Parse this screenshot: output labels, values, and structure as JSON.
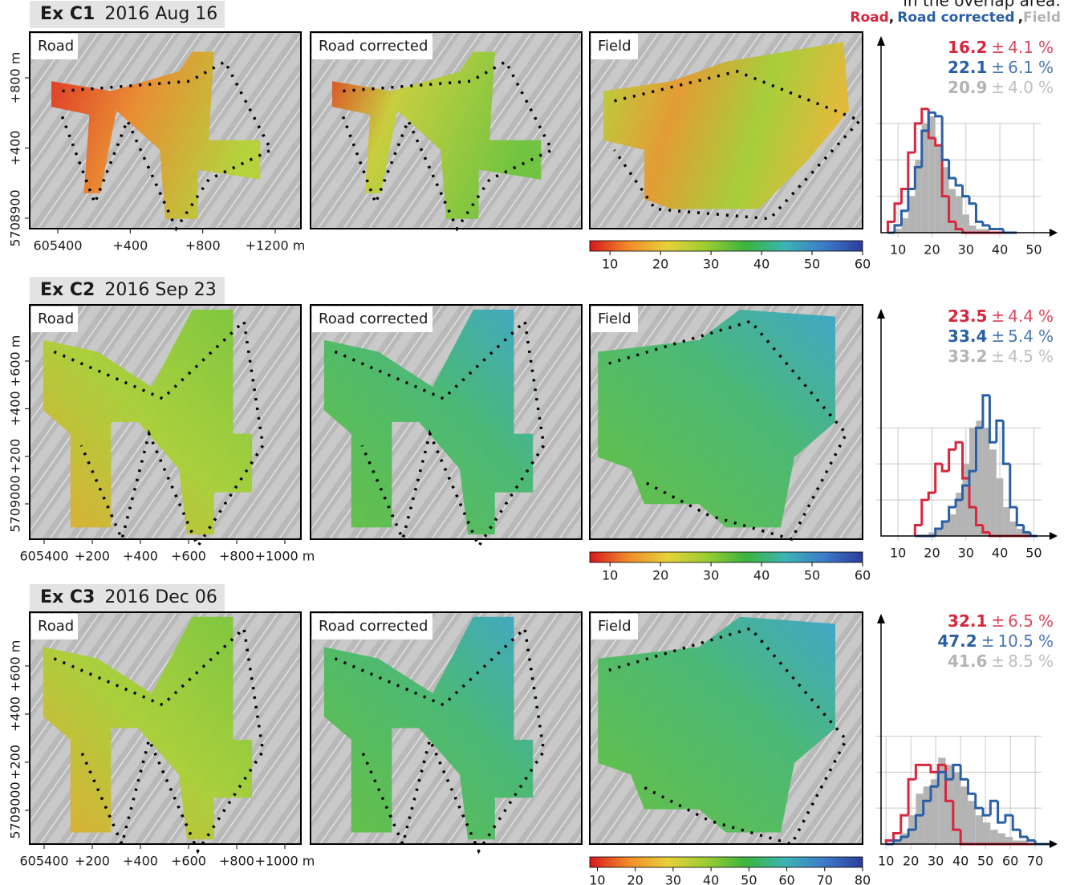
{
  "legend": {
    "caption": "in the overlap area:",
    "separator": ",",
    "entries": [
      {
        "name": "Road",
        "color": "#d7263d"
      },
      {
        "name": "Road corrected",
        "color": "#2a5fa5"
      },
      {
        "name": "Field",
        "color": "#b4b4b4"
      }
    ]
  },
  "colormap": [
    "#d7191c",
    "#f08c2a",
    "#e6d23a",
    "#9acd32",
    "#3cb43c",
    "#3cb4b4",
    "#3c7cc8",
    "#2c3c9c"
  ],
  "panels": [
    {
      "label": "Ex C1",
      "date": "2016 Aug 16",
      "maps": [
        "Road",
        "Road corrected",
        "Field"
      ],
      "x_axis_labels": [
        "605400",
        "+400",
        "+800",
        "+1200 m"
      ],
      "y_axis_labels": [
        "+800 m",
        "+400",
        "5708900"
      ],
      "colorbar": {
        "lim": [
          6,
          60
        ],
        "ticks": [
          10,
          20,
          30,
          40,
          50,
          60
        ]
      },
      "stats": [
        {
          "mean": "16.2",
          "sd": "4.1"
        },
        {
          "mean": "22.1",
          "sd": "6.1"
        },
        {
          "mean": "20.9",
          "sd": "4.0"
        }
      ],
      "pm": "±",
      "unit": "%",
      "histogram": {
        "xlim": [
          5,
          57
        ],
        "xticks": [
          10,
          20,
          30,
          40,
          50
        ],
        "ylim": [
          0,
          54
        ],
        "yticks": [
          10,
          20,
          30
        ],
        "bins": [
          7,
          9,
          11,
          13,
          15,
          17,
          19,
          21,
          23,
          25,
          27,
          29,
          31,
          33,
          35,
          37,
          39,
          41,
          43,
          45
        ],
        "counts": [
          [
            3,
            8,
            12,
            22,
            30,
            34,
            26,
            24,
            10,
            3,
            1,
            0,
            0,
            0,
            0,
            0,
            0,
            0,
            0
          ],
          [
            0,
            2,
            6,
            12,
            18,
            28,
            33,
            32,
            20,
            15,
            13,
            10,
            8,
            3,
            2,
            1,
            1,
            0,
            0
          ],
          [
            0,
            1,
            4,
            10,
            20,
            30,
            32,
            24,
            18,
            12,
            10,
            5,
            2,
            1,
            1,
            0,
            0,
            0,
            0
          ]
        ]
      }
    },
    {
      "label": "Ex C2",
      "date": "2016 Sep 23",
      "maps": [
        "Road",
        "Road corrected",
        "Field"
      ],
      "x_axis_labels": [
        "605400",
        "+200",
        "+400",
        "+600",
        "+800",
        "+1000 m"
      ],
      "y_axis_labels": [
        "+600 m",
        "+400",
        "+200",
        "5709000"
      ],
      "colorbar": {
        "lim": [
          6,
          60
        ],
        "ticks": [
          10,
          20,
          30,
          40,
          50,
          60
        ]
      },
      "stats": [
        {
          "mean": "23.5",
          "sd": "4.4"
        },
        {
          "mean": "33.4",
          "sd": "5.4"
        },
        {
          "mean": "33.2",
          "sd": "4.5"
        }
      ],
      "pm": "±",
      "unit": "%",
      "histogram": {
        "xlim": [
          5,
          57
        ],
        "xticks": [
          10,
          20,
          30,
          40,
          50
        ],
        "ylim": [
          0,
          63
        ],
        "yticks": [
          10,
          20,
          30
        ],
        "bins": [
          15,
          17,
          19,
          21,
          23,
          25,
          27,
          29,
          31,
          33,
          35,
          37,
          39,
          41,
          43,
          45,
          47,
          49,
          51
        ],
        "counts": [
          [
            3,
            10,
            12,
            20,
            18,
            24,
            26,
            16,
            8,
            3,
            1,
            0,
            0,
            0,
            0,
            0,
            0,
            0
          ],
          [
            0,
            0,
            0,
            2,
            4,
            8,
            10,
            14,
            18,
            30,
            39,
            26,
            32,
            20,
            8,
            3,
            1,
            0
          ],
          [
            0,
            0,
            1,
            2,
            4,
            6,
            12,
            20,
            30,
            32,
            30,
            24,
            16,
            8,
            4,
            2,
            1,
            0
          ]
        ]
      }
    },
    {
      "label": "Ex C3",
      "date": "2016 Dec 06",
      "maps": [
        "Road",
        "Road corrected",
        "Field"
      ],
      "x_axis_labels": [
        "605400",
        "+200",
        "+400",
        "+600",
        "+800",
        "+1000 m"
      ],
      "y_axis_labels": [
        "+600 m",
        "+400",
        "+200",
        "5709000"
      ],
      "colorbar": {
        "lim": [
          8,
          80
        ],
        "ticks": [
          10,
          20,
          30,
          40,
          50,
          60,
          70,
          80
        ]
      },
      "stats": [
        {
          "mean": "32.1",
          "sd": "6.5"
        },
        {
          "mean": "47.2",
          "sd": "10.5"
        },
        {
          "mean": "41.6",
          "sd": "8.5"
        }
      ],
      "pm": "±",
      "unit": "%",
      "histogram": {
        "xlim": [
          8,
          79
        ],
        "xticks": [
          10,
          20,
          30,
          40,
          50,
          60,
          70
        ],
        "ylim": [
          0,
          64
        ],
        "yticks": [
          10,
          20,
          30
        ],
        "bins": [
          10,
          13,
          16,
          19,
          22,
          25,
          28,
          31,
          34,
          37,
          40,
          43,
          46,
          49,
          52,
          55,
          58,
          61,
          64,
          67,
          70,
          73,
          76
        ],
        "counts": [
          [
            1,
            3,
            8,
            18,
            22,
            22,
            20,
            22,
            12,
            4,
            0,
            0,
            0,
            0,
            0,
            0,
            0,
            0,
            0,
            0,
            0,
            0
          ],
          [
            0,
            1,
            2,
            4,
            8,
            12,
            16,
            20,
            18,
            22,
            18,
            14,
            10,
            8,
            12,
            6,
            8,
            4,
            2,
            1,
            0,
            0
          ],
          [
            0,
            1,
            3,
            8,
            14,
            16,
            18,
            24,
            22,
            20,
            16,
            12,
            8,
            6,
            4,
            3,
            2,
            1,
            1,
            0,
            0,
            0
          ]
        ]
      }
    }
  ]
}
